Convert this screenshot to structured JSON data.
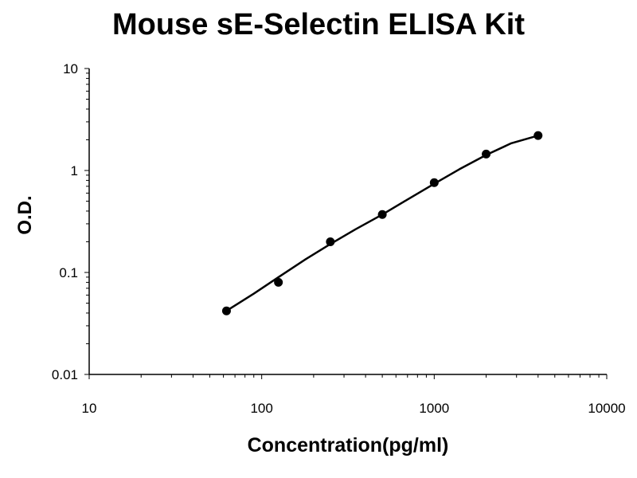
{
  "chart_data": {
    "type": "scatter",
    "title": "Mouse sE-Selectin ELISA Kit",
    "xlabel": "Concentration(pg/ml)",
    "ylabel": "O.D.",
    "x_scale": "log",
    "y_scale": "log",
    "xlim": [
      10,
      10000
    ],
    "ylim": [
      0.01,
      10
    ],
    "x_ticks": [
      "10",
      "100",
      "1000",
      "10000"
    ],
    "y_ticks": [
      "0.01",
      "0.1",
      "1",
      "10"
    ],
    "grid": false,
    "legend": "none",
    "series": [
      {
        "x": [
          62.5,
          125,
          250,
          500,
          1000,
          2000,
          4000
        ],
        "y": [
          0.042,
          0.08,
          0.2,
          0.37,
          0.76,
          1.45,
          2.2
        ]
      }
    ],
    "trendline": {
      "x": [
        62.5,
        90,
        125,
        180,
        250,
        350,
        500,
        700,
        1000,
        1400,
        2000,
        2800,
        4000
      ],
      "y": [
        0.042,
        0.062,
        0.09,
        0.135,
        0.19,
        0.265,
        0.37,
        0.52,
        0.74,
        1.03,
        1.42,
        1.85,
        2.2
      ]
    },
    "colors": {
      "marker": "#000000",
      "line": "#000000",
      "axis": "#000000"
    }
  }
}
